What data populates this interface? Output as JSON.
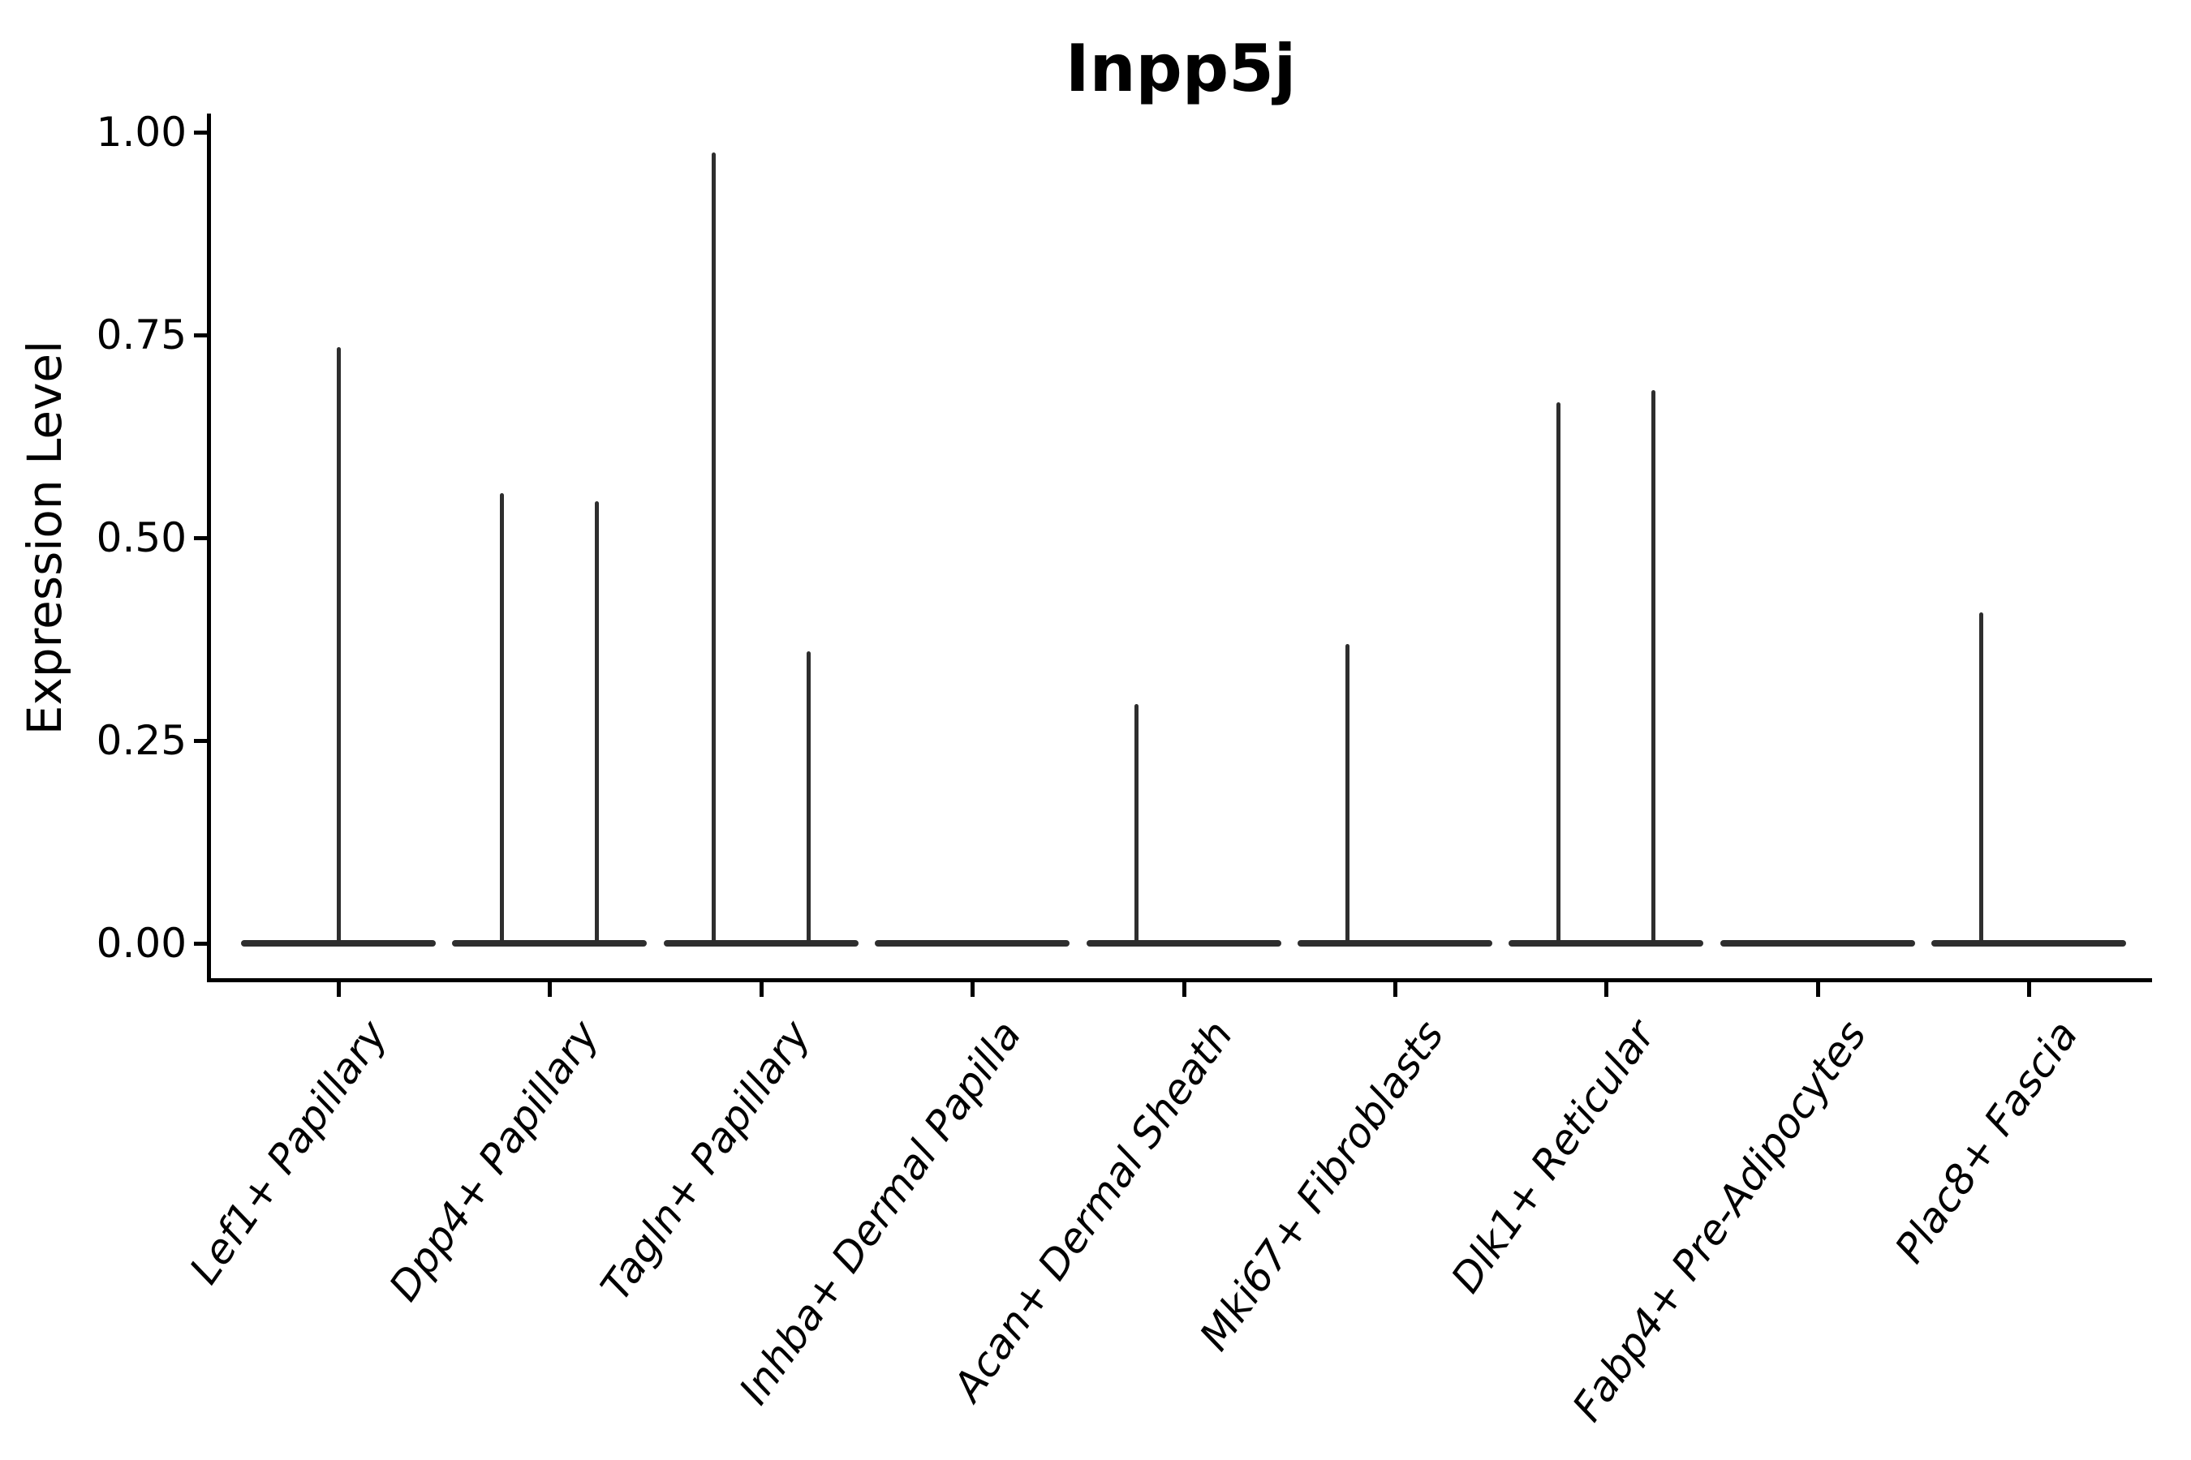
{
  "chart_data": {
    "type": "violin",
    "title": "Inpp5j",
    "ylabel": "Expression Level",
    "xlabel": "",
    "grid": false,
    "legend": "none",
    "ylim": [
      -0.045,
      1.025
    ],
    "yticks": [
      {
        "value": 0.0,
        "label": "0.00"
      },
      {
        "value": 0.25,
        "label": "0.25"
      },
      {
        "value": 0.5,
        "label": "0.50"
      },
      {
        "value": 0.75,
        "label": "0.75"
      },
      {
        "value": 1.0,
        "label": "1.00"
      }
    ],
    "categories": [
      "Lef1+ Papillary",
      "Dpp4+ Papillary",
      "Tagln+ Papillary",
      "Inhba+ Dermal Papilla",
      "Acan+ Dermal Sheath",
      "Mki67+ Fibroblasts",
      "Dlk1+ Reticular",
      "Fabp4+ Pre-Adipocytes",
      "Plac8+ Fascia"
    ],
    "violins": [
      {
        "category": "Lef1+ Papillary",
        "baseline_value": 0.0,
        "spikes": [
          {
            "pos": 0.0,
            "max": 0.735
          }
        ]
      },
      {
        "category": "Dpp4+ Papillary",
        "baseline_value": 0.0,
        "spikes": [
          {
            "pos": -0.225,
            "max": 0.555
          },
          {
            "pos": 0.225,
            "max": 0.545
          }
        ]
      },
      {
        "category": "Tagln+ Papillary",
        "baseline_value": 0.0,
        "spikes": [
          {
            "pos": -0.225,
            "max": 0.975
          },
          {
            "pos": 0.225,
            "max": 0.36
          }
        ]
      },
      {
        "category": "Inhba+ Dermal Papilla",
        "baseline_value": 0.0,
        "spikes": []
      },
      {
        "category": "Acan+ Dermal Sheath",
        "baseline_value": 0.0,
        "spikes": [
          {
            "pos": -0.225,
            "max": 0.295
          }
        ]
      },
      {
        "category": "Mki67+ Fibroblasts",
        "baseline_value": 0.0,
        "spikes": [
          {
            "pos": -0.225,
            "max": 0.369
          }
        ]
      },
      {
        "category": "Dlk1+ Reticular",
        "baseline_value": 0.0,
        "spikes": [
          {
            "pos": -0.225,
            "max": 0.667
          },
          {
            "pos": 0.225,
            "max": 0.682
          }
        ]
      },
      {
        "category": "Fabp4+ Pre-Adipocytes",
        "baseline_value": 0.0,
        "spikes": []
      },
      {
        "category": "Plac8+ Fascia",
        "baseline_value": 0.0,
        "spikes": [
          {
            "pos": -0.225,
            "max": 0.408
          }
        ]
      }
    ],
    "colors": {
      "stroke": "#2e2e2e",
      "axis": "#000000",
      "background": "#ffffff"
    }
  }
}
